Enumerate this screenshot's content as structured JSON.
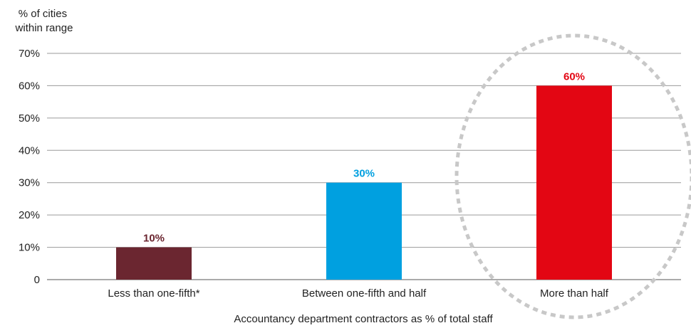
{
  "chart_data": {
    "type": "bar",
    "ylabel": "% of cities within range",
    "ylabel_lines": [
      "% of cities",
      "within range"
    ],
    "xlabel": "Accountancy department contractors as % of total staff",
    "categories": [
      "Less than one-fifth*",
      "Between one-fifth and half",
      "More than half"
    ],
    "values": [
      10,
      30,
      60
    ],
    "data_labels": [
      "10%",
      "30%",
      "60%"
    ],
    "colors": [
      "#6b2630",
      "#00a0e0",
      "#e30613"
    ],
    "yticks": [
      0,
      10,
      20,
      30,
      40,
      50,
      60,
      70
    ],
    "ytick_labels": [
      "0",
      "10%",
      "20%",
      "30%",
      "40%",
      "50%",
      "60%",
      "70%"
    ],
    "ylim": [
      0,
      70
    ],
    "grid": true,
    "highlight": {
      "category": "More than half",
      "style": "dashed-ellipse",
      "color": "#c8c8c8"
    }
  }
}
